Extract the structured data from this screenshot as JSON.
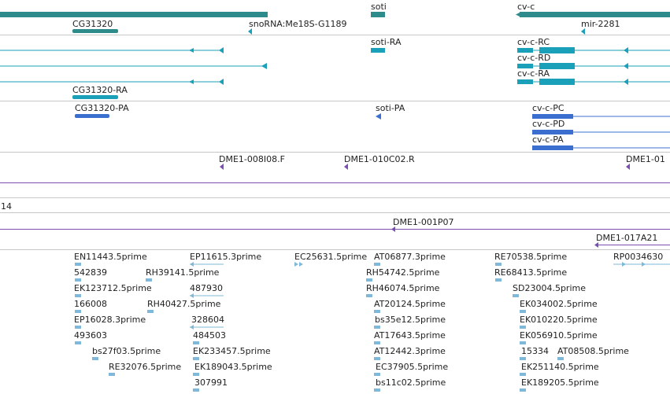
{
  "colors": {
    "gene": "#2e8b8b",
    "transcript": "#1aa0b8",
    "protein": "#3a6fd0",
    "clone": "#7a4fb0",
    "est": "#7fb8d8",
    "divider": "#c8c8c8"
  },
  "tracks": {
    "gene_labels": [
      "soti",
      "cv-c",
      "CG31320",
      "snoRNA:Me18S-G1189",
      "mir-2281"
    ],
    "transcript_labels": [
      "soti-RA",
      "cv-c-RC",
      "cv-c-RD",
      "cv-c-RA",
      "CG31320-RA"
    ],
    "protein_labels": [
      "CG31320-PA",
      "soti-PA",
      "cv-c-PC",
      "cv-c-PD",
      "cv-c-PA"
    ],
    "clone_labels": [
      "DME1-008I08.F",
      "DME1-010C02.R",
      "DME1-01"
    ],
    "number_label": "14",
    "contig_labels": [
      "DME1-001P07",
      "DME1-017A21"
    ],
    "est_labels": [
      "EN11443.5prime",
      "EP11615.3prime",
      "EC25631.5prime",
      "AT06877.3prime",
      "RE70538.5prime",
      "RP0034630",
      "542839",
      "RH39141.5prime",
      "RH54742.5prime",
      "RE68413.5prime",
      "EK123712.5prime",
      "487930",
      "RH46074.5prime",
      "SD23004.5prime",
      "166008",
      "RH40427.5prime",
      "AT20124.5prime",
      "EK034002.5prime",
      "EP16028.3prime",
      "bs35e12.5prime",
      "EK010220.5prime",
      "493603",
      "328604",
      "AT17643.5prime",
      "EK056910.5prime",
      "484503",
      "AT12442.3prime",
      "15334",
      "AT08508.5prime",
      "bs27f03.5prime",
      "EK233457.5prime",
      "EC37905.5prime",
      "EK251140.5prime",
      "RE32076.5prime",
      "EK189043.5prime",
      "EK189205.5prime",
      "307991",
      "bs11c02.5prime"
    ]
  }
}
